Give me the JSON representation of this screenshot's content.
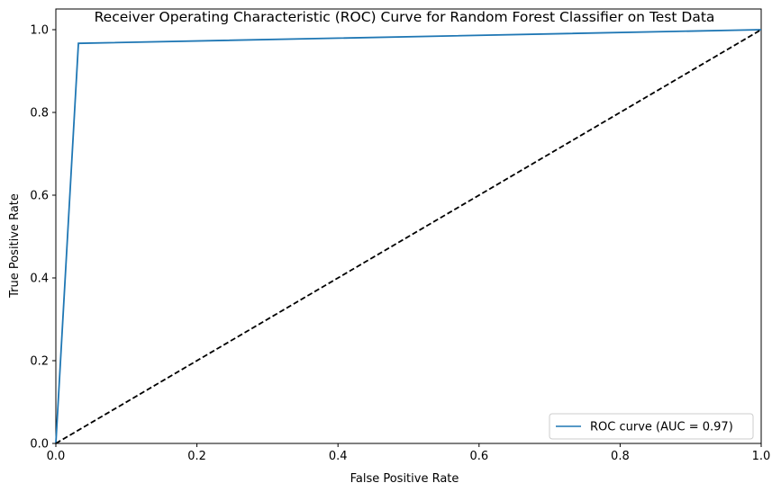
{
  "chart_data": {
    "type": "line",
    "title": "Receiver Operating Characteristic (ROC) Curve for Random Forest Classifier on Test Data",
    "xlabel": "False Positive Rate",
    "ylabel": "True Positive Rate",
    "xlim": [
      0.0,
      1.0
    ],
    "ylim": [
      0.0,
      1.05
    ],
    "xticks": [
      "0.0",
      "0.2",
      "0.4",
      "0.6",
      "0.8",
      "1.0"
    ],
    "yticks": [
      "0.0",
      "0.2",
      "0.4",
      "0.6",
      "0.8",
      "1.0"
    ],
    "grid": false,
    "legend_position": "lower-right",
    "series": [
      {
        "name": "ROC curve (AUC = 0.97)",
        "color": "#1f77b4",
        "style": "solid",
        "x": [
          0.0,
          0.032,
          1.0
        ],
        "y": [
          0.0,
          0.967,
          1.0
        ]
      },
      {
        "color": "#000000",
        "style": "dashed",
        "x": [
          0.0,
          1.0
        ],
        "y": [
          0.0,
          1.0
        ]
      }
    ]
  }
}
